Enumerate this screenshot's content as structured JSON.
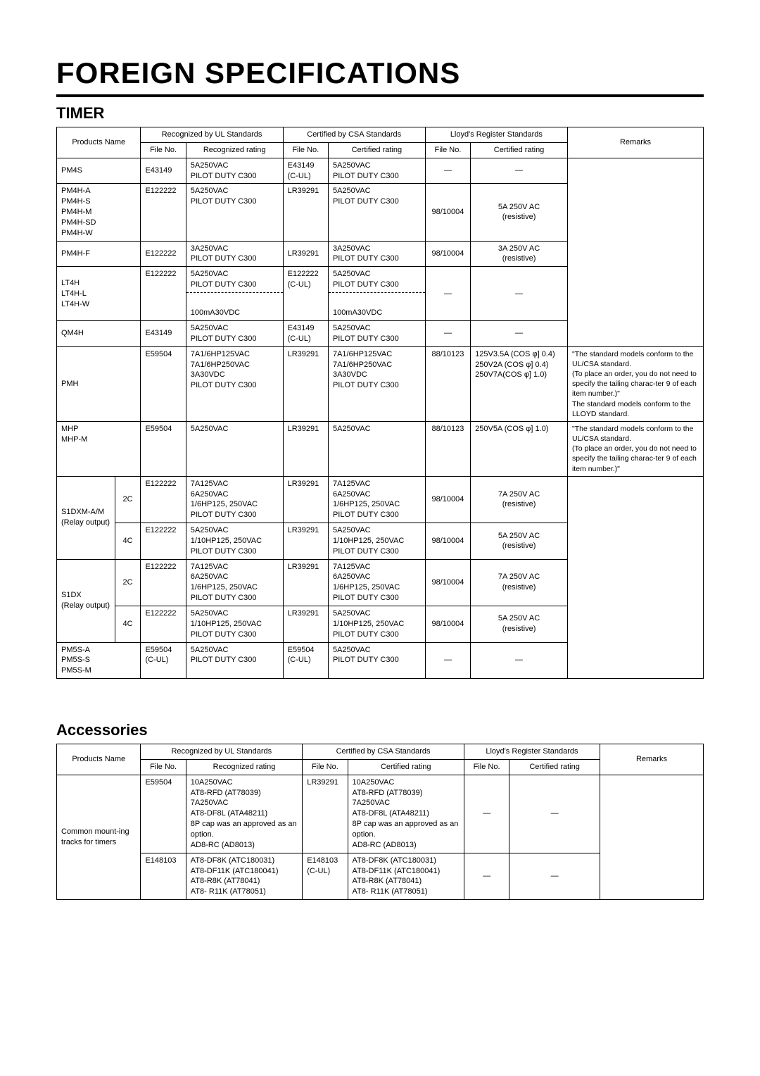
{
  "title": "FOREIGN SPECIFICATIONS",
  "sections": {
    "timer": {
      "heading": "TIMER"
    },
    "accessories": {
      "heading": "Accessories"
    }
  },
  "headers": {
    "products_name": "Products Name",
    "ul": "Recognized by UL Standards",
    "csa": "Certified by CSA Standards",
    "lloyd": "Lloyd's Register Standards",
    "remarks": "Remarks",
    "file_no": "File No.",
    "recognized_rating": "Recognized rating",
    "certified_rating": "Certified rating",
    "products_name_single": "Products Name"
  },
  "dash": "—",
  "timer_rows": {
    "pm4s": {
      "name": "PM4S",
      "ul_file": "E43149",
      "ul_rating": "5A250VAC\nPILOT DUTY C300",
      "csa_file": "E43149\n(C-UL)",
      "csa_rating": "5A250VAC\nPILOT DUTY C300"
    },
    "pm4h_a": {
      "name": "PM4H-A\nPM4H-S\nPM4H-M\nPM4H-SD\nPM4H-W",
      "ul_file": "E122222",
      "ul_rating": "5A250VAC\nPILOT DUTY C300",
      "csa_file": "LR39291",
      "csa_rating": "5A250VAC\nPILOT DUTY C300",
      "ll_file": "98/10004",
      "ll_rating": "5A 250V AC\n(resistive)"
    },
    "pm4h_f": {
      "name": "PM4H-F",
      "ul_file": "E122222",
      "ul_rating": "3A250VAC\nPILOT DUTY C300",
      "csa_file": "LR39291",
      "csa_rating": "3A250VAC\nPILOT DUTY C300",
      "ll_file": "98/10004",
      "ll_rating": "3A 250V AC\n(resistive)"
    },
    "lt4h": {
      "name": "LT4H\nLT4H-L\nLT4H-W",
      "ul_file": "E122222",
      "ul_rating_top": "5A250VAC\nPILOT DUTY C300",
      "ul_rating_bot": "100mA30VDC",
      "csa_file": "E122222\n(C-UL)",
      "csa_rating_top": "5A250VAC\nPILOT DUTY C300",
      "csa_rating_bot": "100mA30VDC"
    },
    "qm4h": {
      "name": "QM4H",
      "ul_file": "E43149",
      "ul_rating": "5A250VAC\nPILOT DUTY C300",
      "csa_file": "E43149\n(C-UL)",
      "csa_rating": "5A250VAC\nPILOT DUTY C300"
    },
    "pmh": {
      "name": "PMH",
      "ul_file": "E59504",
      "ul_rating": "7A1/6HP125VAC\n7A1/6HP250VAC\n3A30VDC\nPILOT DUTY C300",
      "csa_file": "LR39291",
      "csa_rating": "7A1/6HP125VAC\n7A1/6HP250VAC\n3A30VDC\nPILOT DUTY C300",
      "ll_file": "88/10123",
      "ll_rating": "125V3.5A (COS φ]  0.4)\n250V2A (COS φ]  0.4)\n250V7A(COS φ]  1.0)",
      "remarks": "\"The standard models conform to the UL/CSA standard.\n(To place an order, you do not need to specify the tailing charac-ter 9 of each item number.)\"\nThe standard models conform to the LLOYD standard."
    },
    "mhp": {
      "name": "MHP\nMHP-M",
      "ul_file": "E59504",
      "ul_rating": "5A250VAC",
      "csa_file": "LR39291",
      "csa_rating": "5A250VAC",
      "ll_file": "88/10123",
      "ll_rating": "250V5A (COS φ]  1.0)",
      "remarks": "\"The standard models conform to the UL/CSA standard.\n(To place an order, you do not need to specify the tailing charac-ter 9 of each item number.)\""
    },
    "s1dxm": {
      "name": "S1DXM-A/M\n(Relay output)",
      "sub2c": "2C",
      "sub4c": "4C",
      "r2c": {
        "ul_file": "E122222",
        "ul_rating": "7A125VAC\n6A250VAC\n1/6HP125, 250VAC\nPILOT DUTY C300",
        "csa_file": "LR39291",
        "csa_rating": "7A125VAC\n6A250VAC\n1/6HP125, 250VAC\nPILOT DUTY C300",
        "ll_file": "98/10004",
        "ll_rating": "7A 250V AC\n(resistive)"
      },
      "r4c": {
        "ul_file": "E122222",
        "ul_rating": "5A250VAC\n1/10HP125, 250VAC\nPILOT DUTY C300",
        "csa_file": "LR39291",
        "csa_rating": "5A250VAC\n1/10HP125, 250VAC\nPILOT DUTY C300",
        "ll_file": "98/10004",
        "ll_rating": "5A 250V AC\n(resistive)"
      }
    },
    "s1dx": {
      "name": "S1DX\n(Relay output)",
      "sub2c": "2C",
      "sub4c": "4C",
      "r2c": {
        "ul_file": "E122222",
        "ul_rating": "7A125VAC\n6A250VAC\n1/6HP125, 250VAC\nPILOT DUTY C300",
        "csa_file": "LR39291",
        "csa_rating": "7A125VAC\n6A250VAC\n1/6HP125, 250VAC\nPILOT DUTY C300",
        "ll_file": "98/10004",
        "ll_rating": "7A 250V AC\n(resistive)"
      },
      "r4c": {
        "ul_file": "E122222",
        "ul_rating": "5A250VAC\n1/10HP125, 250VAC\nPILOT DUTY C300",
        "csa_file": "LR39291",
        "csa_rating": "5A250VAC\n1/10HP125, 250VAC\nPILOT DUTY C300",
        "ll_file": "98/10004",
        "ll_rating": "5A 250V AC\n(resistive)"
      }
    },
    "pm5s": {
      "name": "PM5S-A\nPM5S-S\nPM5S-M",
      "ul_file": "E59504\n(C-UL)",
      "ul_rating": "5A250VAC\nPILOT DUTY C300",
      "csa_file": "E59504\n(C-UL)",
      "csa_rating": "5A250VAC\nPILOT DUTY C300"
    }
  },
  "acc_rows": {
    "common": {
      "name": "Common mount-ing tracks for timers",
      "r1": {
        "ul_file": "E59504",
        "ul_rating": "10A250VAC\nAT8-RFD (AT78039)\n7A250VAC\nAT8-DF8L (ATA48211)\n8P cap was an approved as an option.\nAD8-RC (AD8013)",
        "csa_file": "LR39291",
        "csa_rating": "10A250VAC\nAT8-RFD (AT78039)\n7A250VAC\nAT8-DF8L (ATA48211)\n8P cap was an approved as an option.\nAD8-RC (AD8013)"
      },
      "r2": {
        "ul_file": "E148103",
        "ul_rating": "AT8-DF8K (ATC180031)\nAT8-DF11K (ATC180041)\nAT8-R8K (AT78041)\nAT8- R11K (AT78051)",
        "csa_file": "E148103\n(C-UL)",
        "csa_rating": "AT8-DF8K (ATC180031)\nAT8-DF11K (ATC180041)\nAT8-R8K (AT78041)\nAT8- R11K (AT78051)"
      }
    }
  }
}
